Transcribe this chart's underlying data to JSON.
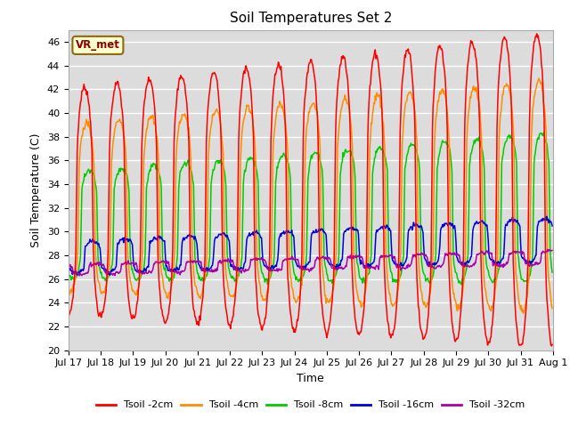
{
  "title": "Soil Temperatures Set 2",
  "xlabel": "Time",
  "ylabel": "Soil Temperature (C)",
  "ylim": [
    20,
    47
  ],
  "yticks": [
    20,
    22,
    24,
    26,
    28,
    30,
    32,
    34,
    36,
    38,
    40,
    42,
    44,
    46
  ],
  "plot_bg_color": "#dcdcdc",
  "grid_color": "#ffffff",
  "annotation_text": "VR_met",
  "annotation_facecolor": "#ffffcc",
  "annotation_edgecolor": "#8b6914",
  "annotation_textcolor": "#8b0000",
  "colors": {
    "Tsoil -2cm": "#ff0000",
    "Tsoil -4cm": "#ff8c00",
    "Tsoil -8cm": "#00cc00",
    "Tsoil -16cm": "#0000dd",
    "Tsoil -32cm": "#aa00aa"
  },
  "legend_labels": [
    "Tsoil -2cm",
    "Tsoil -4cm",
    "Tsoil -8cm",
    "Tsoil -16cm",
    "Tsoil -32cm"
  ],
  "x_tick_labels": [
    "Jul 17",
    "Jul 18",
    "Jul 19",
    "Jul 20",
    "Jul 21",
    "Jul 22",
    "Jul 23",
    "Jul 24",
    "Jul 25",
    "Jul 26",
    "Jul 27",
    "Jul 28",
    "Jul 29",
    "Jul 30",
    "Jul 31",
    "Aug 1"
  ],
  "linewidth": 1.1,
  "n_days": 15,
  "pts_per_day": 48
}
